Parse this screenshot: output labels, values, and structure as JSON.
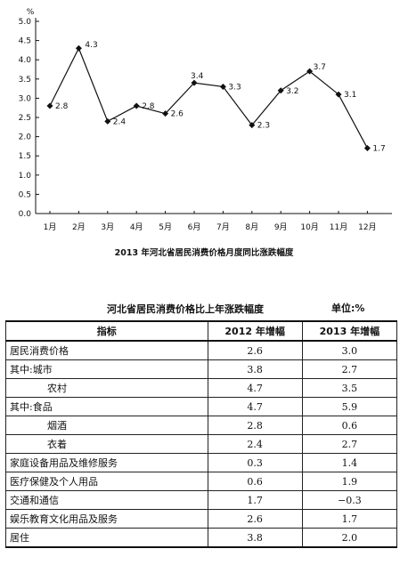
{
  "chart_data": {
    "type": "line",
    "ylabel": "%",
    "ylim": [
      0.0,
      5.0
    ],
    "yticks": [
      "0.0",
      "0.5",
      "1.0",
      "1.5",
      "2.0",
      "2.5",
      "3.0",
      "3.5",
      "4.0",
      "4.5",
      "5.0"
    ],
    "categories": [
      "1月",
      "2月",
      "3月",
      "4月",
      "5月",
      "6月",
      "7月",
      "8月",
      "9月",
      "10月",
      "11月",
      "12月"
    ],
    "values": [
      2.8,
      4.3,
      2.4,
      2.8,
      2.6,
      3.4,
      3.3,
      2.3,
      3.2,
      3.7,
      3.1,
      1.7
    ],
    "value_labels": [
      "2.8",
      "4.3",
      "2.4",
      "2.8",
      "2.6",
      "3.4",
      "3.3",
      "2.3",
      "3.2",
      "3.7",
      "3.1",
      "1.7"
    ],
    "title": "2013 年河北省居民消费价格月度同比涨跌幅度",
    "grid": false
  },
  "table": {
    "title": "河北省居民消费价格比上年涨跌幅度",
    "unit": "单位:%",
    "headers": [
      "指标",
      "2012 年增幅",
      "2013 年增幅"
    ],
    "rows": [
      {
        "label": "居民消费价格",
        "sub": false,
        "v2012": "2.6",
        "v2013": "3.0"
      },
      {
        "label": "其中:城市",
        "sub": false,
        "v2012": "3.8",
        "v2013": "2.7"
      },
      {
        "label": "农村",
        "sub": true,
        "v2012": "4.7",
        "v2013": "3.5"
      },
      {
        "label": "其中:食品",
        "sub": false,
        "v2012": "4.7",
        "v2013": "5.9"
      },
      {
        "label": "烟酒",
        "sub": true,
        "v2012": "2.8",
        "v2013": "0.6"
      },
      {
        "label": "衣着",
        "sub": true,
        "v2012": "2.4",
        "v2013": "2.7"
      },
      {
        "label": "家庭设备用品及维修服务",
        "sub": false,
        "v2012": "0.3",
        "v2013": "1.4"
      },
      {
        "label": "医疗保健及个人用品",
        "sub": false,
        "v2012": "0.6",
        "v2013": "1.9"
      },
      {
        "label": "交通和通信",
        "sub": false,
        "v2012": "1.7",
        "v2013": "−0.3"
      },
      {
        "label": "娱乐教育文化用品及服务",
        "sub": false,
        "v2012": "2.6",
        "v2013": "1.7"
      },
      {
        "label": "居住",
        "sub": false,
        "v2012": "3.8",
        "v2013": "2.0"
      }
    ]
  }
}
